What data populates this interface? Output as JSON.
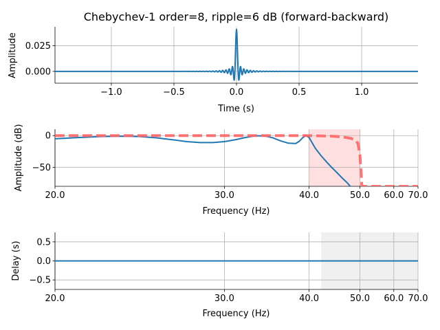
{
  "chart_data": [
    {
      "type": "line",
      "title": "Chebychev-1 order=8, ripple=6 dB (forward-backward)",
      "xlabel": "Time (s)",
      "ylabel": "Amplitude",
      "xlim": [
        -1.45,
        1.45
      ],
      "ylim": [
        -0.0115,
        0.0435
      ],
      "grid": true,
      "xticks": [
        -1.0,
        -0.5,
        0.0,
        0.5,
        1.0
      ],
      "xtick_labels": [
        "−1.0",
        "−0.5",
        "0.0",
        "0.5",
        "1.0"
      ],
      "yticks": [
        0.0,
        0.025
      ],
      "ytick_labels": [
        "0.000",
        "0.025"
      ],
      "series": [
        {
          "description": "impulse response (sinc-like, peak 0.041 at t=0)",
          "color": "#1f77b4",
          "peak": 0.041,
          "trough": -0.012,
          "x_extent": [
            -1.45,
            1.45
          ]
        }
      ]
    },
    {
      "type": "line",
      "xlabel": "Frequency (Hz)",
      "ylabel": "Amplitude (dB)",
      "xlim": [
        20,
        70
      ],
      "ylim": [
        -80,
        10
      ],
      "xscale": "reciprocal",
      "grid": true,
      "xticks": [
        20,
        30,
        40,
        50,
        60,
        70
      ],
      "xtick_labels": [
        "20.0",
        "30.0",
        "40.0",
        "50.0",
        "60.0",
        "70.0"
      ],
      "yticks": [
        0,
        -50
      ],
      "ytick_labels": [
        "0",
        "−50"
      ],
      "shaded_band": {
        "x": [
          40,
          50
        ],
        "color": "#ffe0e0"
      },
      "series": [
        {
          "color": "#1f77b4",
          "x": [
            20,
            21,
            22,
            23,
            24,
            25,
            26,
            27,
            28,
            29,
            30,
            31,
            32,
            33,
            34,
            35,
            36,
            37,
            38,
            38.5,
            39,
            39.5,
            40,
            41,
            42,
            43,
            44,
            45,
            46,
            47,
            48
          ],
          "y": [
            -5,
            -3,
            -1.5,
            -1,
            -1.5,
            -3.5,
            -6.5,
            -9.5,
            -11,
            -11,
            -9.5,
            -6.5,
            -3,
            -0.3,
            -0.5,
            -3.5,
            -8.5,
            -12,
            -12.5,
            -9,
            -3.5,
            0,
            -3,
            -20,
            -32,
            -42,
            -51,
            -59,
            -67,
            -74,
            -82
          ]
        },
        {
          "color": "#ff6666",
          "style": "dashed",
          "x": [
            20,
            25,
            30,
            35,
            40,
            44,
            46,
            48,
            49,
            49.5,
            50,
            50.5,
            70
          ],
          "y": [
            0,
            0,
            0,
            0,
            0,
            -1,
            -2,
            -4.5,
            -8,
            -12,
            -30,
            -80,
            -80
          ]
        }
      ]
    },
    {
      "type": "line",
      "xlabel": "Frequency (Hz)",
      "ylabel": "Delay (s)",
      "xlim": [
        20,
        70
      ],
      "ylim": [
        -0.75,
        0.75
      ],
      "xscale": "reciprocal",
      "grid": true,
      "xticks": [
        20,
        30,
        40,
        50,
        60,
        70
      ],
      "xtick_labels": [
        "20.0",
        "30.0",
        "40.0",
        "50.0",
        "60.0",
        "70.0"
      ],
      "yticks": [
        0.5,
        0.0,
        -0.5
      ],
      "ytick_labels": [
        "0.5",
        "0.0",
        "−0.5"
      ],
      "shaded_band": {
        "x": [
          42,
          70
        ],
        "color": "#f0f0f0"
      },
      "series": [
        {
          "color": "#1f77b4",
          "x": [
            20,
            70
          ],
          "y": [
            0,
            0
          ]
        }
      ]
    }
  ]
}
